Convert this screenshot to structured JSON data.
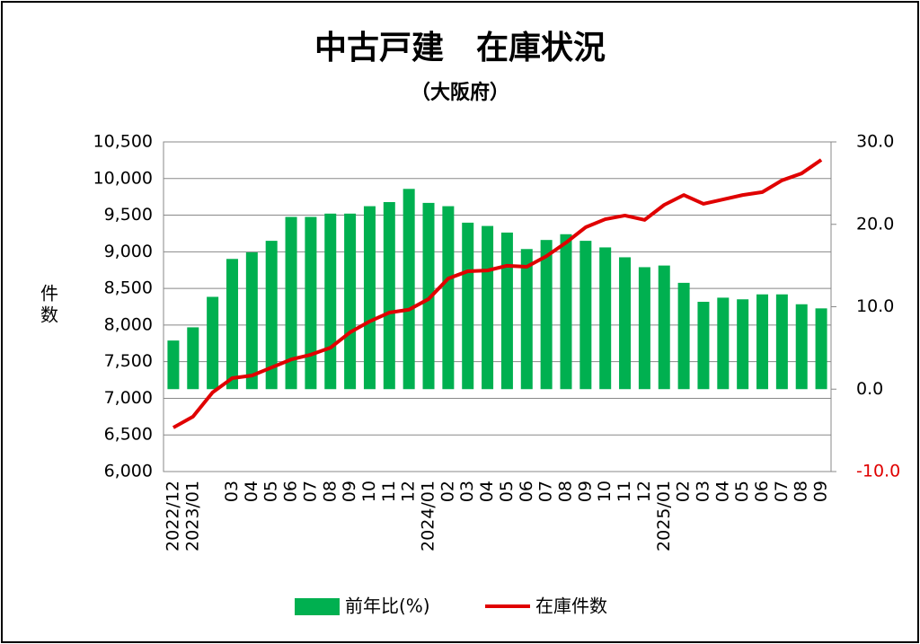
{
  "chart_data": {
    "type": "bar_line",
    "title": "中古戸建　在庫状況",
    "subtitle": "（大阪府）",
    "y_label": "件数",
    "categories": [
      "2022/12",
      "2023/01",
      null,
      "03",
      "04",
      "05",
      "06",
      "07",
      "08",
      "09",
      "10",
      "11",
      "12",
      "2024/01",
      "02",
      "03",
      "04",
      "05",
      "06",
      "07",
      "08",
      "09",
      "10",
      "11",
      "12",
      "2025/01",
      "02",
      "03",
      "04",
      "05",
      "06",
      "07",
      "08",
      "09"
    ],
    "series": [
      {
        "name": "前年比(%)",
        "type": "bar",
        "axis": "y2",
        "color": "#00b050",
        "values": [
          5.9,
          7.5,
          11.2,
          15.8,
          16.6,
          18.0,
          20.9,
          20.9,
          21.3,
          21.3,
          22.2,
          22.7,
          24.3,
          22.6,
          22.2,
          20.2,
          19.8,
          19.0,
          17.0,
          18.1,
          18.8,
          18.0,
          17.2,
          16.0,
          14.8,
          15.0,
          12.9,
          10.6,
          11.1,
          10.9,
          11.5,
          11.5,
          10.3,
          9.8
        ]
      },
      {
        "name": "在庫件数",
        "type": "line",
        "axis": "y",
        "color": "#e00000",
        "values": [
          6600,
          6750,
          7080,
          7275,
          7310,
          7420,
          7530,
          7595,
          7690,
          7900,
          8050,
          8170,
          8210,
          8355,
          8635,
          8735,
          8745,
          8810,
          8795,
          8940,
          9125,
          9335,
          9445,
          9495,
          9435,
          9640,
          9775,
          9655,
          9715,
          9775,
          9815,
          9975,
          10070,
          10255
        ]
      }
    ],
    "ylim": [
      6000,
      10500
    ],
    "yticks": [
      {
        "value": 6000,
        "label": "6,000"
      },
      {
        "value": 6500,
        "label": "6,500"
      },
      {
        "value": 7000,
        "label": "7,000"
      },
      {
        "value": 7500,
        "label": "7,500"
      },
      {
        "value": 8000,
        "label": "8,000"
      },
      {
        "value": 8500,
        "label": "8,500"
      },
      {
        "value": 9000,
        "label": "9,000"
      },
      {
        "value": 9500,
        "label": "9,500"
      },
      {
        "value": 10000,
        "label": "10,000"
      },
      {
        "value": 10500,
        "label": "10,500"
      }
    ],
    "y2lim": [
      -10,
      30
    ],
    "y2ticks": [
      {
        "value": -10,
        "label": "-10.0"
      },
      {
        "value": 0,
        "label": "0.0"
      },
      {
        "value": 10,
        "label": "10.0"
      },
      {
        "value": 20,
        "label": "20.0"
      },
      {
        "value": 30,
        "label": "30.0"
      }
    ],
    "grid": true,
    "legend": "bottom"
  }
}
